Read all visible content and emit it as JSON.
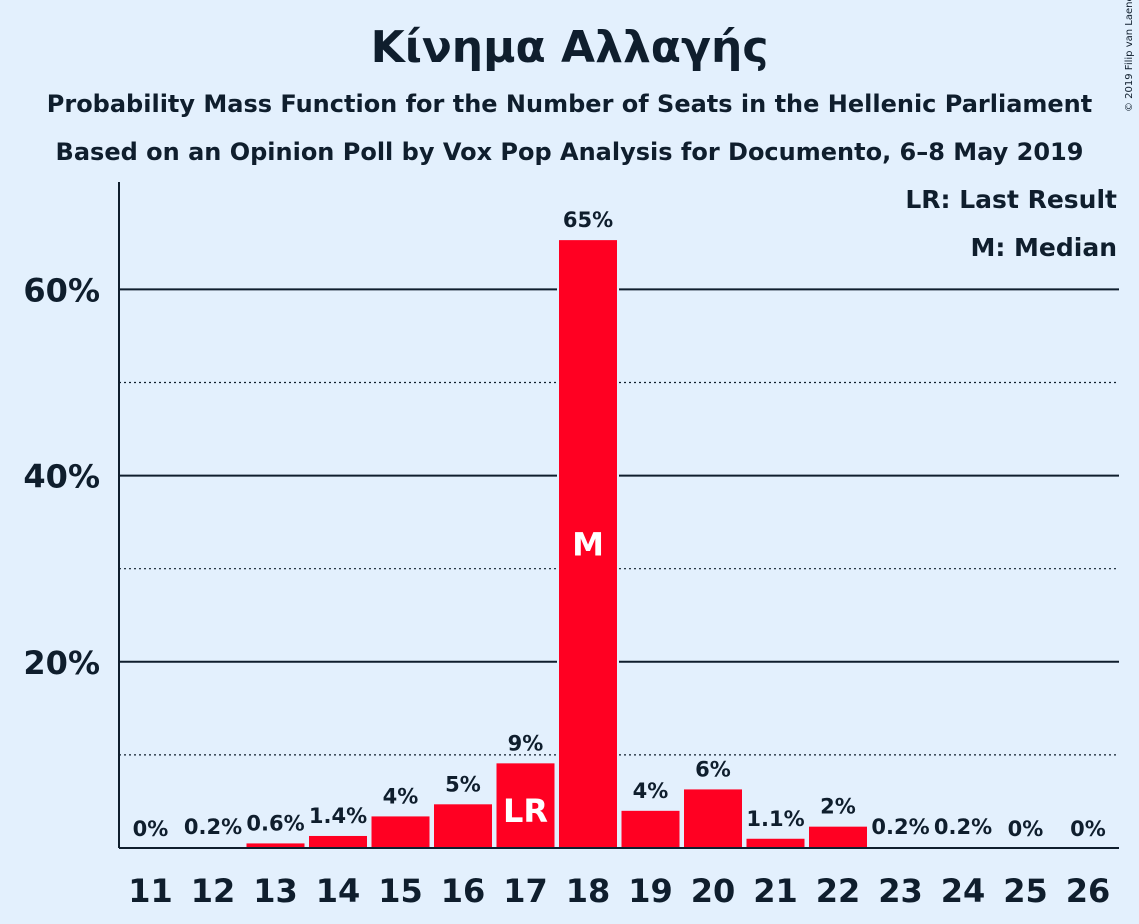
{
  "title": "Κίνημα Αλλαγής",
  "subtitle_1": "Probability Mass Function for the Number of Seats in the Hellenic Parliament",
  "subtitle_2": "Based on an Opinion Poll by Vox Pop Analysis for Documento, 6–8 May 2019",
  "copyright": "© 2019 Filip van Laenen",
  "colors": {
    "background": "#E3F0FD",
    "bar": "#FF0022",
    "text": "#0F1E2D"
  },
  "chart_data": {
    "type": "bar",
    "categories": [
      "11",
      "12",
      "13",
      "14",
      "15",
      "16",
      "17",
      "18",
      "19",
      "20",
      "21",
      "22",
      "23",
      "24",
      "25",
      "26"
    ],
    "values": [
      0,
      0.2,
      0.6,
      1.4,
      3.5,
      4.8,
      9.2,
      65.4,
      4.1,
      6.4,
      1.1,
      2.4,
      0.2,
      0.2,
      0,
      0
    ],
    "data_labels": [
      "0%",
      "0.2%",
      "0.6%",
      "1.4%",
      "4%",
      "5%",
      "9%",
      "65%",
      "4%",
      "6%",
      "1.1%",
      "2%",
      "0.2%",
      "0.2%",
      "0%",
      "0%"
    ],
    "ylim": [
      0,
      71
    ],
    "yticks_major": [
      20,
      40,
      60
    ],
    "ytick_labels": [
      "20%",
      "40%",
      "60%"
    ],
    "yticks_minor": [
      10,
      30,
      50
    ],
    "grid": true,
    "last_result_category": "17",
    "median_category": "18",
    "bar_markers": [
      {
        "category": "17",
        "text": "LR"
      },
      {
        "category": "18",
        "text": "M"
      }
    ],
    "legend": {
      "placement": "top-right",
      "entries": [
        "LR: Last Result",
        "M: Median"
      ]
    }
  }
}
